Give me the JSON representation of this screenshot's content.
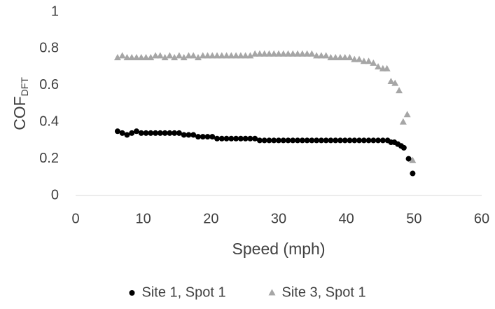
{
  "chart_data": {
    "type": "scatter",
    "x_label": "Speed (mph)",
    "y_label": "COF",
    "y_label_sub": "DFT",
    "xlim": [
      0,
      60
    ],
    "xticks": [
      0,
      10,
      20,
      30,
      40,
      50,
      60
    ],
    "ylim": [
      0,
      1
    ],
    "yticks": [
      0,
      0.2,
      0.4,
      0.6,
      0.8,
      1
    ],
    "grid": false,
    "legend": "bottom",
    "series": [
      {
        "name": "Site 1, Spot 1",
        "color": "#000000",
        "marker": "circle",
        "x": [
          6.2,
          6.9,
          7.6,
          8.3,
          9.0,
          9.7,
          10.4,
          11.1,
          11.8,
          12.5,
          13.2,
          13.9,
          14.6,
          15.3,
          16.0,
          16.7,
          17.4,
          18.1,
          18.8,
          19.5,
          20.2,
          20.9,
          21.6,
          22.3,
          23.0,
          23.7,
          24.4,
          25.1,
          25.8,
          26.5,
          27.2,
          27.9,
          28.6,
          29.3,
          30.0,
          30.7,
          31.4,
          32.1,
          32.8,
          33.5,
          34.2,
          34.9,
          35.6,
          36.3,
          37.0,
          37.7,
          38.4,
          39.1,
          39.8,
          40.5,
          41.2,
          41.9,
          42.6,
          43.3,
          44.0,
          44.7,
          45.4,
          46.1,
          46.6,
          47.1,
          47.6,
          48.1,
          48.5,
          49.2,
          49.8
        ],
        "values": [
          0.35,
          0.34,
          0.33,
          0.34,
          0.35,
          0.34,
          0.34,
          0.34,
          0.34,
          0.34,
          0.34,
          0.34,
          0.34,
          0.34,
          0.33,
          0.33,
          0.33,
          0.32,
          0.32,
          0.32,
          0.32,
          0.31,
          0.31,
          0.31,
          0.31,
          0.31,
          0.31,
          0.31,
          0.31,
          0.31,
          0.3,
          0.3,
          0.3,
          0.3,
          0.3,
          0.3,
          0.3,
          0.3,
          0.3,
          0.3,
          0.3,
          0.3,
          0.3,
          0.3,
          0.3,
          0.3,
          0.3,
          0.3,
          0.3,
          0.3,
          0.3,
          0.3,
          0.3,
          0.3,
          0.3,
          0.3,
          0.3,
          0.3,
          0.29,
          0.29,
          0.28,
          0.27,
          0.26,
          0.2,
          0.12
        ]
      },
      {
        "name": "Site 3, Spot 1",
        "color": "#a6a6a6",
        "marker": "triangle",
        "x": [
          6.2,
          6.9,
          7.6,
          8.3,
          9.0,
          9.7,
          10.4,
          11.1,
          11.8,
          12.5,
          13.2,
          13.9,
          14.6,
          15.3,
          16.0,
          16.7,
          17.4,
          18.1,
          18.8,
          19.5,
          20.2,
          20.9,
          21.6,
          22.3,
          23.0,
          23.7,
          24.4,
          25.1,
          25.8,
          26.5,
          27.2,
          27.9,
          28.6,
          29.3,
          30.0,
          30.7,
          31.4,
          32.1,
          32.8,
          33.5,
          34.2,
          34.9,
          35.6,
          36.3,
          37.0,
          37.7,
          38.4,
          39.1,
          39.8,
          40.5,
          41.2,
          41.9,
          42.6,
          43.3,
          44.0,
          44.7,
          45.4,
          46.0,
          46.6,
          47.2,
          47.8,
          48.4,
          49.0,
          49.8
        ],
        "values": [
          0.75,
          0.76,
          0.75,
          0.75,
          0.75,
          0.75,
          0.75,
          0.75,
          0.76,
          0.76,
          0.75,
          0.76,
          0.75,
          0.76,
          0.75,
          0.76,
          0.76,
          0.75,
          0.76,
          0.76,
          0.76,
          0.76,
          0.76,
          0.76,
          0.76,
          0.76,
          0.76,
          0.76,
          0.76,
          0.77,
          0.77,
          0.77,
          0.77,
          0.77,
          0.77,
          0.77,
          0.77,
          0.77,
          0.77,
          0.77,
          0.77,
          0.77,
          0.76,
          0.76,
          0.76,
          0.75,
          0.75,
          0.75,
          0.75,
          0.75,
          0.74,
          0.74,
          0.73,
          0.73,
          0.72,
          0.7,
          0.69,
          0.69,
          0.62,
          0.61,
          0.57,
          0.4,
          0.44,
          0.19
        ]
      }
    ]
  }
}
